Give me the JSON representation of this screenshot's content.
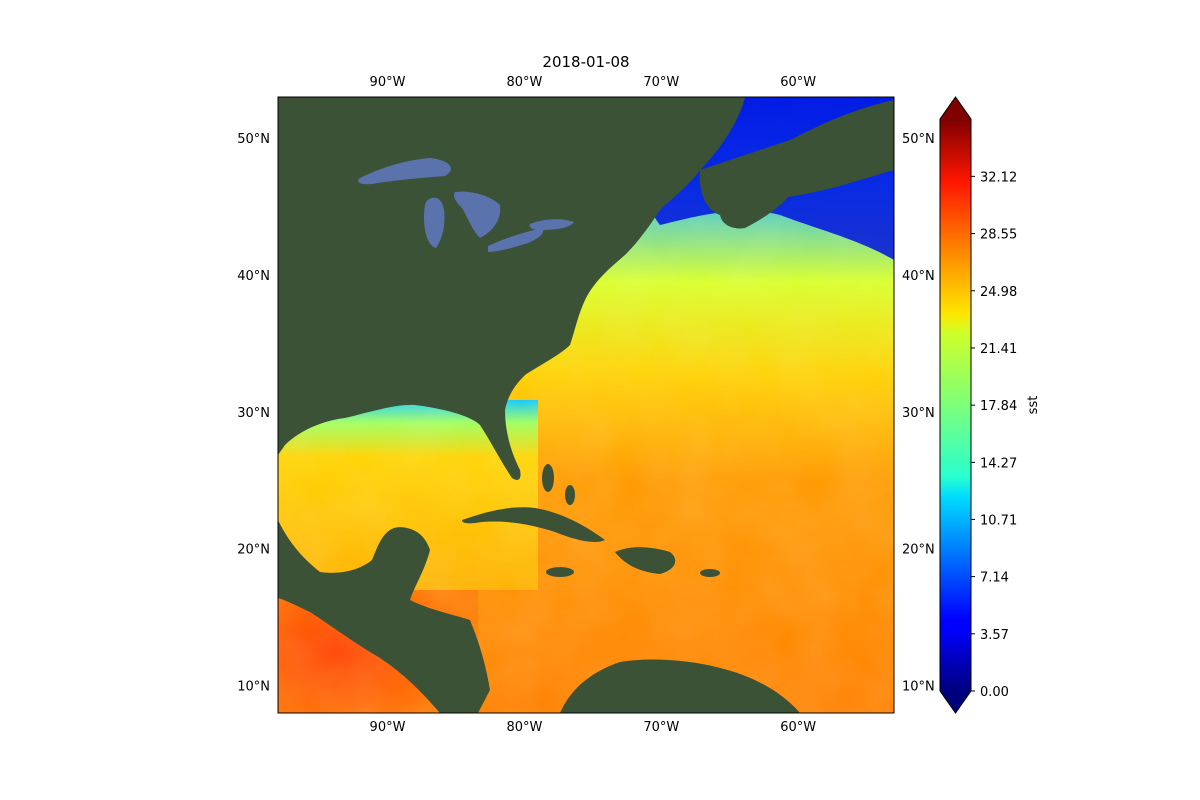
{
  "title": "2018-01-08",
  "map": {
    "lon_range": [
      -98,
      -53
    ],
    "lat_range": [
      8,
      53
    ],
    "lon_ticks": [
      {
        "value": -90,
        "label": "90°W"
      },
      {
        "value": -80,
        "label": "80°W"
      },
      {
        "value": -70,
        "label": "70°W"
      },
      {
        "value": -60,
        "label": "60°W"
      }
    ],
    "lat_ticks": [
      {
        "value": 50,
        "label": "50°N"
      },
      {
        "value": 40,
        "label": "40°N"
      },
      {
        "value": 30,
        "label": "30°N"
      },
      {
        "value": 20,
        "label": "20°N"
      },
      {
        "value": 10,
        "label": "10°N"
      }
    ],
    "land_color": "#3c5236",
    "lake_color": "#5b73ad"
  },
  "colorbar": {
    "label": "sst",
    "colormap": "jet",
    "extend": "both",
    "range": [
      0,
      35.7
    ],
    "ticks": [
      {
        "value": 0.0,
        "label": "0.00"
      },
      {
        "value": 3.57,
        "label": "3.57"
      },
      {
        "value": 7.14,
        "label": "7.14"
      },
      {
        "value": 10.71,
        "label": "10.71"
      },
      {
        "value": 14.27,
        "label": "14.27"
      },
      {
        "value": 17.84,
        "label": "17.84"
      },
      {
        "value": 21.41,
        "label": "21.41"
      },
      {
        "value": 24.98,
        "label": "24.98"
      },
      {
        "value": 28.55,
        "label": "28.55"
      },
      {
        "value": 32.12,
        "label": "32.12"
      }
    ]
  }
}
